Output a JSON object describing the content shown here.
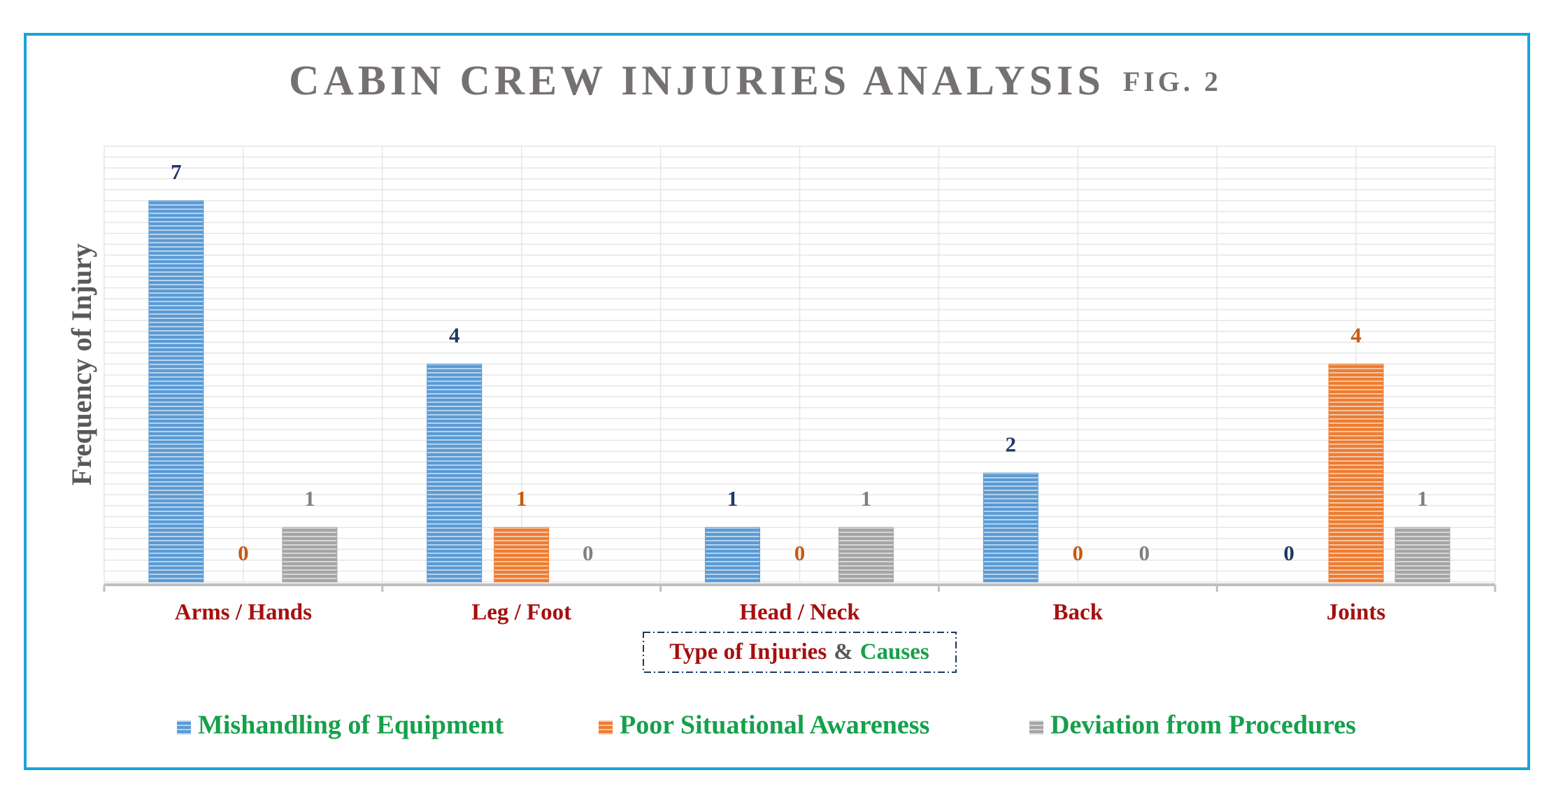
{
  "chart_data": {
    "type": "bar",
    "title": "CABIN CREW INJURIES ANALYSIS",
    "subtitle": "FIG. 2",
    "y_label": "Frequency of Injury",
    "x_label_parts": [
      "Type of Injuries",
      "&",
      "Causes"
    ],
    "x_label_colors": [
      "#a50f0f",
      "#595959",
      "#15a04a"
    ],
    "categories": [
      "Arms / Hands",
      "Leg / Foot",
      "Head / Neck",
      "Back",
      "Joints"
    ],
    "series": [
      {
        "name": "Mishandling of Equipment",
        "color": "#5b9bd5",
        "label_color": "#1f3864",
        "values": [
          7,
          4,
          1,
          2,
          0
        ]
      },
      {
        "name": "Poor Situational Awareness",
        "color": "#ed7d31",
        "label_color": "#c55a11",
        "values": [
          0,
          1,
          0,
          0,
          4
        ]
      },
      {
        "name": "Deviation from Procedures",
        "color": "#a5a5a5",
        "label_color": "#7f7f7f",
        "values": [
          1,
          0,
          1,
          0,
          1
        ]
      }
    ],
    "ylim": [
      0,
      8
    ],
    "grid": true,
    "legend": "bottom"
  }
}
